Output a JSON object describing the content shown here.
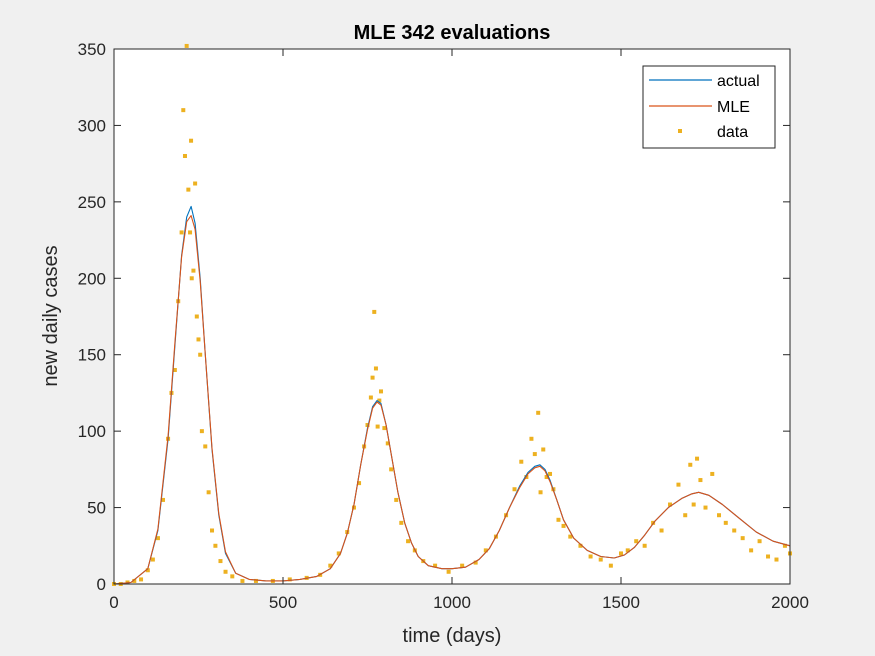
{
  "chart_data": {
    "type": "line",
    "title": "MLE 342 evaluations",
    "xlabel": "time (days)",
    "ylabel": "new daily cases",
    "xlim": [
      0,
      2000
    ],
    "ylim": [
      0,
      350
    ],
    "xticks": [
      0,
      500,
      1000,
      1500,
      2000
    ],
    "yticks": [
      0,
      50,
      100,
      150,
      200,
      250,
      300,
      350
    ],
    "grid": false,
    "legend_position": "top-right",
    "colors": {
      "actual": "#0072BD",
      "MLE": "#D95319",
      "data": "#EDB120",
      "axes_bg": "#ffffff",
      "figure_bg": "#f0f0f0"
    },
    "series": [
      {
        "name": "actual",
        "style": "line",
        "x": [
          0,
          50,
          100,
          130,
          160,
          180,
          200,
          215,
          228,
          240,
          255,
          270,
          290,
          310,
          330,
          360,
          400,
          450,
          500,
          550,
          600,
          640,
          670,
          690,
          710,
          730,
          750,
          765,
          778,
          790,
          805,
          820,
          840,
          860,
          880,
          900,
          930,
          970,
          1000,
          1040,
          1080,
          1110,
          1140,
          1170,
          1200,
          1225,
          1245,
          1260,
          1275,
          1290,
          1310,
          1330,
          1360,
          1400,
          1440,
          1480,
          1510,
          1540,
          1570,
          1600,
          1640,
          1680,
          1710,
          1730,
          1760,
          1800,
          1850,
          1900,
          1950,
          2000
        ],
        "values": [
          0,
          1,
          10,
          35,
          95,
          155,
          215,
          240,
          247,
          236,
          200,
          150,
          88,
          45,
          20,
          7,
          3,
          2,
          2,
          3,
          5,
          10,
          20,
          33,
          52,
          78,
          102,
          116,
          120,
          118,
          104,
          85,
          60,
          40,
          27,
          18,
          12,
          10,
          10,
          11,
          16,
          23,
          35,
          50,
          64,
          73,
          77,
          78,
          75,
          68,
          55,
          42,
          30,
          22,
          18,
          17,
          19,
          24,
          32,
          41,
          50,
          56,
          59,
          60,
          58,
          52,
          43,
          34,
          28,
          25
        ]
      },
      {
        "name": "MLE",
        "style": "line",
        "x": [
          0,
          50,
          100,
          130,
          160,
          180,
          200,
          215,
          228,
          240,
          255,
          270,
          290,
          310,
          330,
          360,
          400,
          450,
          500,
          550,
          600,
          640,
          670,
          690,
          710,
          730,
          750,
          765,
          778,
          790,
          805,
          820,
          840,
          860,
          880,
          900,
          930,
          970,
          1000,
          1040,
          1080,
          1110,
          1140,
          1170,
          1200,
          1225,
          1245,
          1260,
          1275,
          1290,
          1310,
          1330,
          1360,
          1400,
          1440,
          1480,
          1510,
          1540,
          1570,
          1600,
          1640,
          1680,
          1710,
          1730,
          1760,
          1800,
          1850,
          1900,
          1950,
          2000
        ],
        "values": [
          0,
          1,
          10,
          36,
          97,
          157,
          214,
          237,
          241,
          232,
          198,
          150,
          89,
          46,
          21,
          7,
          3,
          2,
          2,
          3,
          5,
          10,
          20,
          33,
          52,
          78,
          101,
          115,
          119,
          117,
          104,
          85,
          60,
          40,
          27,
          18,
          12,
          10,
          10,
          11,
          16,
          23,
          35,
          50,
          63,
          72,
          76,
          77,
          74,
          67,
          55,
          42,
          30,
          22,
          18,
          17,
          19,
          24,
          32,
          41,
          50,
          56,
          59,
          60,
          58,
          52,
          43,
          34,
          28,
          25
        ]
      },
      {
        "name": "data",
        "style": "markers",
        "x": [
          0,
          20,
          40,
          60,
          80,
          100,
          115,
          130,
          145,
          160,
          170,
          180,
          190,
          200,
          205,
          210,
          215,
          220,
          225,
          228,
          230,
          235,
          240,
          245,
          250,
          255,
          260,
          270,
          280,
          290,
          300,
          315,
          330,
          350,
          380,
          420,
          470,
          520,
          570,
          610,
          640,
          665,
          690,
          710,
          725,
          740,
          750,
          760,
          765,
          770,
          775,
          780,
          785,
          790,
          800,
          810,
          820,
          835,
          850,
          870,
          890,
          915,
          950,
          990,
          1030,
          1070,
          1100,
          1130,
          1160,
          1185,
          1205,
          1220,
          1235,
          1245,
          1255,
          1262,
          1270,
          1280,
          1290,
          1300,
          1315,
          1330,
          1350,
          1380,
          1410,
          1440,
          1470,
          1500,
          1520,
          1545,
          1570,
          1595,
          1620,
          1645,
          1670,
          1690,
          1705,
          1715,
          1725,
          1735,
          1750,
          1770,
          1790,
          1810,
          1835,
          1860,
          1885,
          1910,
          1935,
          1960,
          1985,
          2000
        ],
        "values": [
          0,
          0,
          1,
          2,
          3,
          9,
          16,
          30,
          55,
          95,
          125,
          140,
          185,
          230,
          310,
          280,
          352,
          258,
          230,
          290,
          200,
          205,
          262,
          175,
          160,
          150,
          100,
          90,
          60,
          35,
          25,
          15,
          8,
          5,
          2,
          2,
          2,
          3,
          4,
          6,
          12,
          20,
          34,
          50,
          66,
          90,
          104,
          122,
          135,
          178,
          141,
          103,
          120,
          126,
          102,
          92,
          75,
          55,
          40,
          28,
          22,
          15,
          12,
          8,
          12,
          14,
          22,
          31,
          45,
          62,
          80,
          70,
          95,
          85,
          112,
          60,
          88,
          70,
          72,
          62,
          42,
          38,
          31,
          25,
          18,
          16,
          12,
          20,
          22,
          28,
          25,
          40,
          35,
          52,
          65,
          45,
          78,
          52,
          82,
          68,
          50,
          72,
          45,
          40,
          35,
          30,
          22,
          28,
          18,
          16,
          25,
          20
        ]
      }
    ],
    "legend": [
      "actual",
      "MLE",
      "data"
    ]
  }
}
